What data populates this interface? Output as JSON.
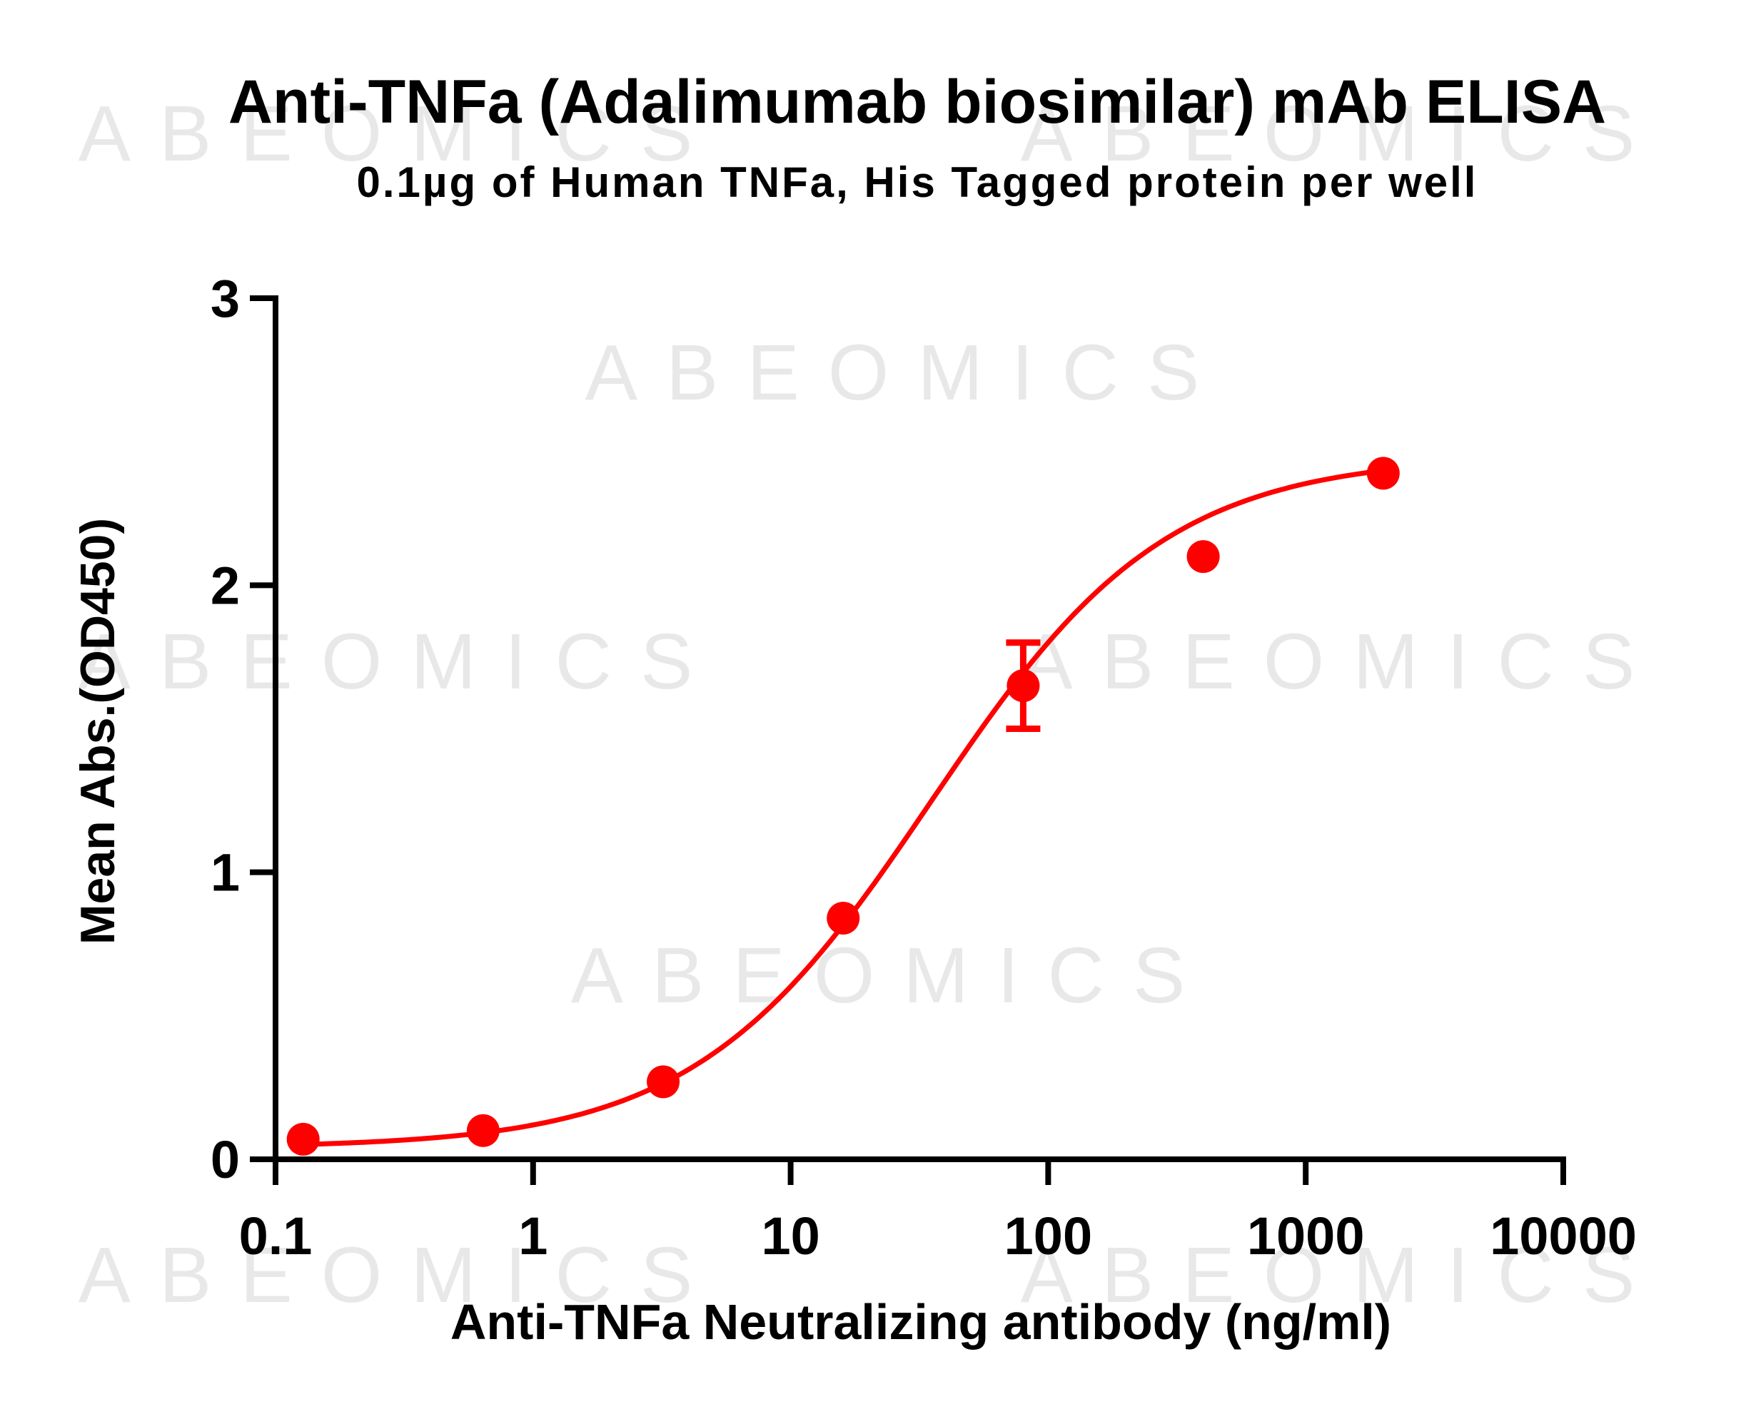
{
  "chart_data": {
    "type": "scatter",
    "title": "Anti-TNFa (Adalimumab biosimilar) mAb ELISA",
    "subtitle": "0.1µg of Human TNFa, His Tagged protein per well",
    "xlabel": "Anti-TNFa Neutralizing antibody (ng/ml)",
    "ylabel": "Mean Abs.(OD450)",
    "xscale": "log",
    "xlim": [
      0.1,
      10000
    ],
    "ylim": [
      0,
      3
    ],
    "x_ticks": [
      0.1,
      1,
      10,
      100,
      1000,
      10000
    ],
    "x_tick_labels": [
      "0.1",
      "1",
      "10",
      "100",
      "1000",
      "10000"
    ],
    "y_ticks": [
      0,
      1,
      2,
      3
    ],
    "y_tick_labels": [
      "0",
      "1",
      "2",
      "3"
    ],
    "grid": false,
    "legend": "none",
    "watermark": "ABEOMICS",
    "colors": {
      "series": "#ff0000",
      "axis": "#000000",
      "watermark": "#e8e8e8"
    },
    "series": [
      {
        "x": [
          0.128,
          0.64,
          3.2,
          16,
          80,
          400,
          2000
        ],
        "y": [
          0.07,
          0.1,
          0.27,
          0.84,
          1.65,
          2.1,
          2.39
        ],
        "error": [
          0,
          0,
          0,
          0,
          0.15,
          0,
          0
        ]
      }
    ],
    "fit": {
      "model": "4PL",
      "bottom": 0.04,
      "top": 2.45,
      "ec50": 35,
      "hill": 0.95
    }
  }
}
